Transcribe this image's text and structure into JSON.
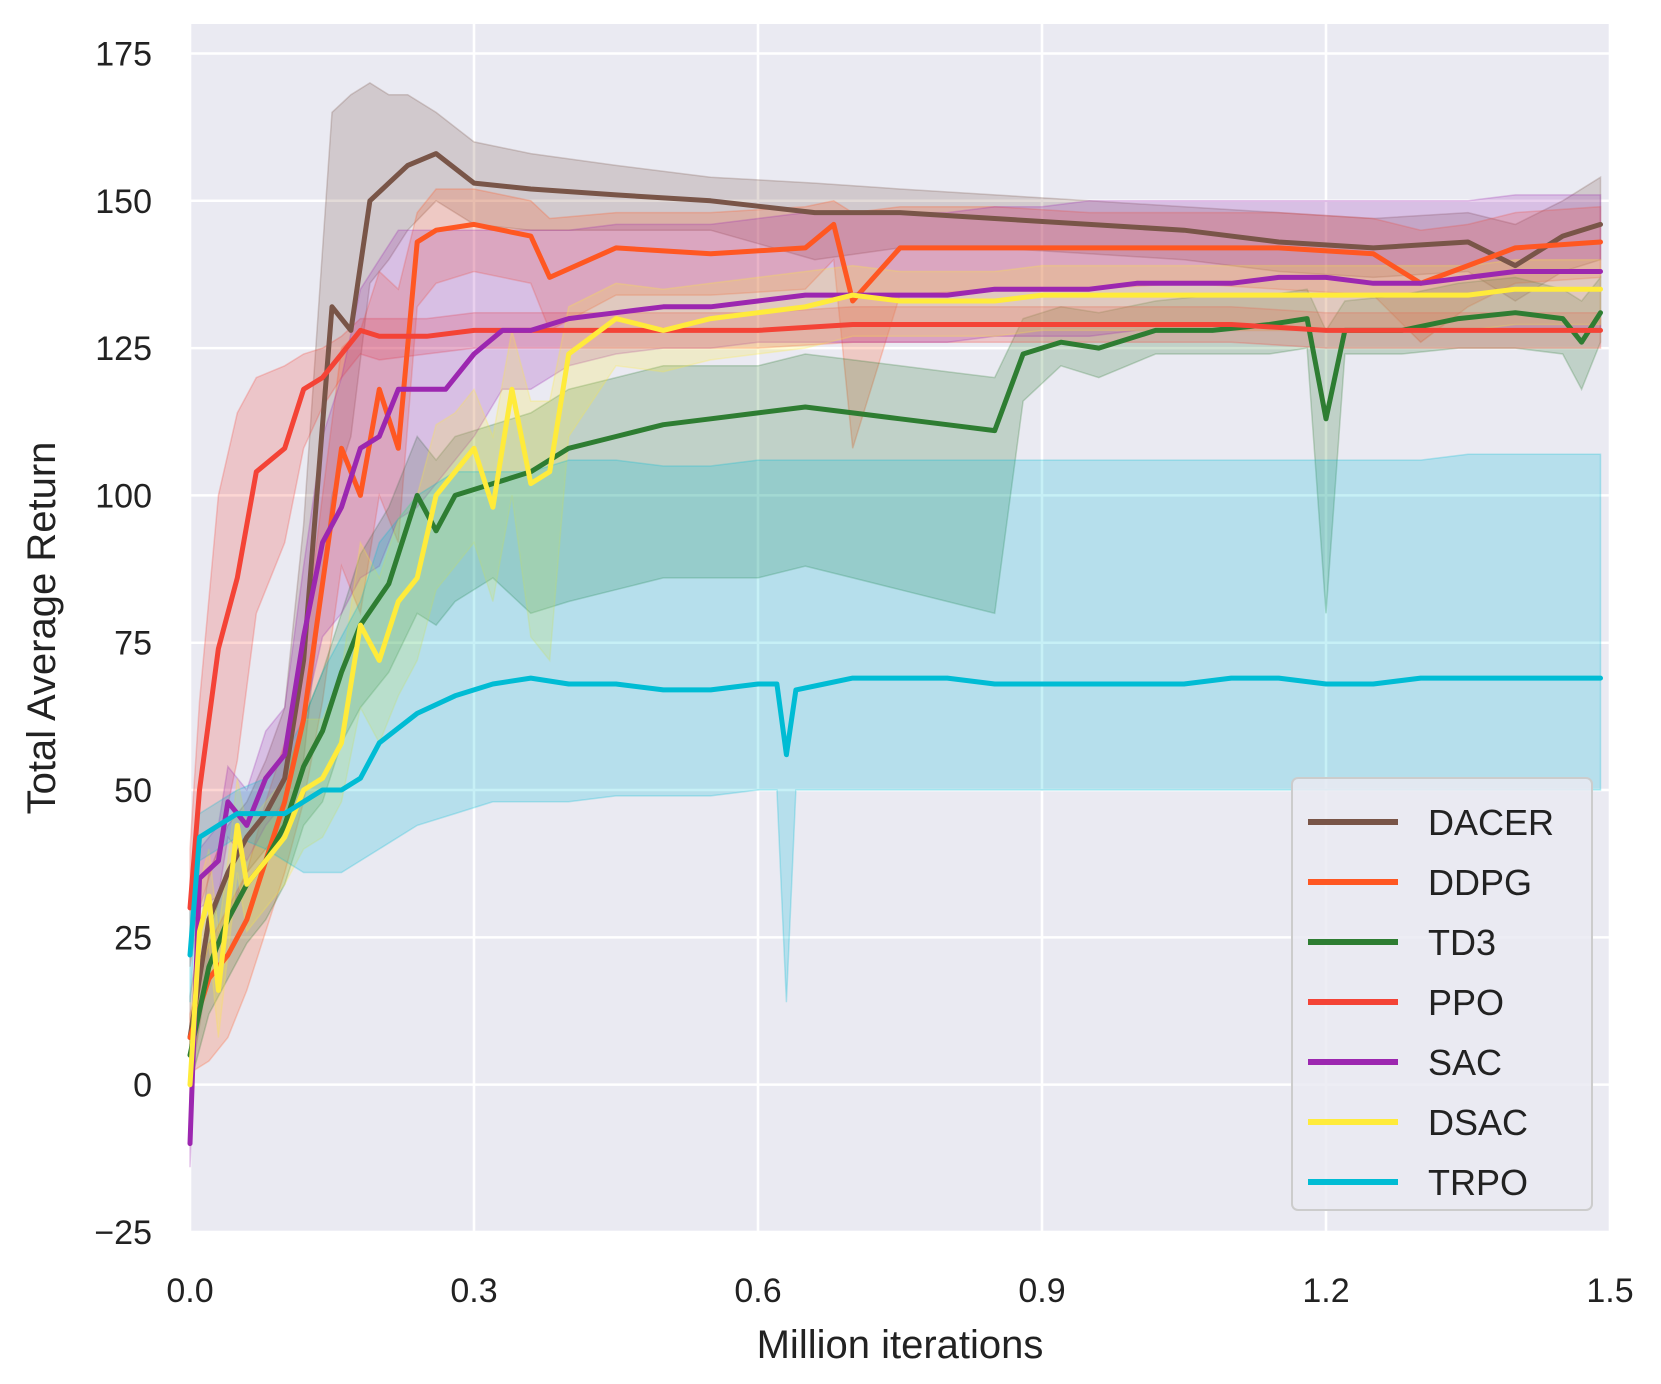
{
  "chart_data": {
    "type": "line",
    "title": "",
    "xlabel": "Million iterations",
    "ylabel": "Total Average Return",
    "xlim": [
      0.0,
      1.5
    ],
    "ylim": [
      -25,
      180
    ],
    "xticks": [
      0.0,
      0.3,
      0.6,
      0.9,
      1.2,
      1.5
    ],
    "xtick_labels": [
      "0.0",
      "0.3",
      "0.6",
      "0.9",
      "1.2",
      "1.5"
    ],
    "yticks": [
      -25,
      0,
      25,
      50,
      75,
      100,
      125,
      150,
      175
    ],
    "ytick_labels": [
      "−25",
      "0",
      "25",
      "50",
      "75",
      "100",
      "125",
      "150",
      "175"
    ],
    "grid": true,
    "background": "#eaeaf2",
    "legend_position": "bottom-right",
    "series": [
      {
        "name": "DACER",
        "color": "#795548",
        "x": [
          0,
          0.02,
          0.04,
          0.06,
          0.08,
          0.1,
          0.12,
          0.15,
          0.17,
          0.19,
          0.21,
          0.23,
          0.26,
          0.3,
          0.36,
          0.45,
          0.55,
          0.66,
          0.75,
          0.85,
          0.95,
          1.05,
          1.15,
          1.25,
          1.35,
          1.4,
          1.45,
          1.49
        ],
        "y": [
          8,
          28,
          36,
          42,
          46,
          52,
          72,
          132,
          128,
          150,
          153,
          156,
          158,
          153,
          152,
          151,
          150,
          148,
          148,
          147,
          146,
          145,
          143,
          142,
          143,
          139,
          144,
          146
        ],
        "upper": [
          15,
          36,
          44,
          48,
          55,
          64,
          95,
          165,
          168,
          170,
          168,
          168,
          165,
          160,
          158,
          156,
          154,
          153,
          152,
          151,
          150,
          149,
          148,
          147,
          148,
          146,
          150,
          154
        ],
        "lower": [
          0,
          20,
          28,
          36,
          40,
          44,
          55,
          100,
          110,
          136,
          140,
          145,
          150,
          146,
          145,
          145,
          145,
          140,
          142,
          142,
          141,
          140,
          138,
          137,
          138,
          133,
          138,
          140
        ]
      },
      {
        "name": "DDPG",
        "color": "#ff5722",
        "x": [
          0,
          0.02,
          0.04,
          0.06,
          0.08,
          0.1,
          0.12,
          0.14,
          0.16,
          0.18,
          0.2,
          0.22,
          0.24,
          0.26,
          0.3,
          0.36,
          0.38,
          0.45,
          0.55,
          0.65,
          0.68,
          0.7,
          0.75,
          0.85,
          0.95,
          1.05,
          1.15,
          1.25,
          1.3,
          1.35,
          1.4,
          1.49
        ],
        "y": [
          8,
          18,
          22,
          28,
          38,
          48,
          62,
          85,
          108,
          100,
          118,
          108,
          143,
          145,
          146,
          144,
          137,
          142,
          141,
          142,
          146,
          133,
          142,
          142,
          142,
          142,
          142,
          141,
          136,
          139,
          142,
          143
        ],
        "upper": [
          12,
          24,
          30,
          36,
          48,
          58,
          74,
          100,
          125,
          128,
          138,
          135,
          148,
          152,
          152,
          150,
          147,
          148,
          148,
          149,
          150,
          148,
          149,
          149,
          148,
          148,
          148,
          147,
          145,
          146,
          148,
          149
        ],
        "lower": [
          2,
          4,
          8,
          16,
          26,
          36,
          48,
          65,
          88,
          80,
          100,
          92,
          132,
          136,
          138,
          136,
          128,
          134,
          134,
          135,
          140,
          108,
          134,
          135,
          135,
          136,
          135,
          134,
          126,
          132,
          136,
          137
        ]
      },
      {
        "name": "TD3",
        "color": "#2e7d32",
        "x": [
          0,
          0.02,
          0.04,
          0.06,
          0.08,
          0.1,
          0.12,
          0.14,
          0.16,
          0.18,
          0.21,
          0.24,
          0.26,
          0.28,
          0.32,
          0.36,
          0.4,
          0.45,
          0.5,
          0.55,
          0.6,
          0.65,
          0.7,
          0.75,
          0.8,
          0.85,
          0.88,
          0.92,
          0.96,
          1.02,
          1.08,
          1.14,
          1.18,
          1.2,
          1.22,
          1.28,
          1.34,
          1.4,
          1.45,
          1.47,
          1.49
        ],
        "y": [
          5,
          20,
          28,
          34,
          38,
          44,
          54,
          60,
          70,
          78,
          85,
          100,
          94,
          100,
          102,
          104,
          108,
          110,
          112,
          113,
          114,
          115,
          114,
          113,
          112,
          111,
          124,
          126,
          125,
          128,
          128,
          129,
          130,
          113,
          128,
          128,
          130,
          131,
          130,
          126,
          131
        ],
        "upper": [
          10,
          26,
          36,
          42,
          46,
          52,
          62,
          70,
          80,
          90,
          98,
          110,
          106,
          110,
          112,
          114,
          118,
          120,
          122,
          122,
          122,
          124,
          123,
          122,
          121,
          120,
          130,
          132,
          131,
          133,
          134,
          134,
          135,
          128,
          133,
          134,
          136,
          137,
          135,
          133,
          137
        ],
        "lower": [
          0,
          12,
          18,
          24,
          28,
          34,
          44,
          48,
          58,
          64,
          70,
          80,
          78,
          82,
          86,
          80,
          82,
          84,
          86,
          86,
          86,
          88,
          86,
          84,
          82,
          80,
          116,
          122,
          120,
          124,
          124,
          124,
          125,
          80,
          124,
          124,
          125,
          125,
          124,
          118,
          126
        ]
      },
      {
        "name": "PPO",
        "color": "#f44336",
        "x": [
          0,
          0.01,
          0.03,
          0.05,
          0.07,
          0.1,
          0.12,
          0.14,
          0.16,
          0.18,
          0.2,
          0.25,
          0.3,
          0.4,
          0.5,
          0.6,
          0.7,
          0.8,
          0.9,
          1.0,
          1.1,
          1.2,
          1.3,
          1.4,
          1.49
        ],
        "y": [
          30,
          50,
          74,
          86,
          104,
          108,
          118,
          120,
          124,
          128,
          127,
          127,
          128,
          128,
          128,
          128,
          129,
          129,
          129,
          129,
          129,
          128,
          128,
          128,
          128
        ],
        "upper": [
          40,
          65,
          100,
          114,
          120,
          122,
          124,
          125,
          127,
          130,
          130,
          130,
          131,
          131,
          131,
          131,
          132,
          132,
          132,
          132,
          132,
          131,
          131,
          131,
          131
        ],
        "lower": [
          20,
          30,
          40,
          55,
          80,
          92,
          108,
          115,
          120,
          124,
          123,
          124,
          125,
          125,
          125,
          125,
          126,
          126,
          126,
          126,
          126,
          125,
          125,
          125,
          125
        ]
      },
      {
        "name": "SAC",
        "color": "#9c27b0",
        "x": [
          0,
          0.01,
          0.03,
          0.04,
          0.06,
          0.08,
          0.1,
          0.12,
          0.14,
          0.16,
          0.18,
          0.2,
          0.22,
          0.24,
          0.27,
          0.3,
          0.33,
          0.36,
          0.4,
          0.45,
          0.5,
          0.55,
          0.6,
          0.65,
          0.7,
          0.75,
          0.8,
          0.85,
          0.9,
          0.95,
          1.0,
          1.05,
          1.1,
          1.15,
          1.2,
          1.25,
          1.3,
          1.35,
          1.4,
          1.45,
          1.49
        ],
        "y": [
          -10,
          35,
          38,
          48,
          44,
          52,
          56,
          76,
          92,
          98,
          108,
          110,
          118,
          118,
          118,
          124,
          128,
          128,
          130,
          131,
          132,
          132,
          133,
          134,
          134,
          134,
          134,
          135,
          135,
          135,
          136,
          136,
          136,
          137,
          137,
          136,
          136,
          137,
          138,
          138,
          138
        ],
        "upper": [
          -2,
          40,
          44,
          54,
          50,
          60,
          64,
          88,
          110,
          120,
          135,
          140,
          145,
          145,
          145,
          145,
          145,
          145,
          145,
          146,
          146,
          146,
          147,
          148,
          148,
          148,
          148,
          149,
          149,
          150,
          150,
          150,
          150,
          150,
          150,
          150,
          150,
          150,
          151,
          151,
          151
        ],
        "lower": [
          -14,
          30,
          32,
          42,
          38,
          44,
          48,
          62,
          76,
          80,
          86,
          88,
          96,
          98,
          104,
          110,
          118,
          118,
          122,
          124,
          125,
          125,
          126,
          126,
          126,
          126,
          126,
          127,
          127,
          127,
          128,
          128,
          128,
          128,
          128,
          128,
          128,
          128,
          128,
          128,
          128
        ]
      },
      {
        "name": "DSAC",
        "color": "#ffeb3b",
        "x": [
          0,
          0.01,
          0.02,
          0.03,
          0.04,
          0.05,
          0.06,
          0.08,
          0.1,
          0.12,
          0.14,
          0.16,
          0.18,
          0.2,
          0.22,
          0.24,
          0.26,
          0.28,
          0.3,
          0.32,
          0.34,
          0.36,
          0.38,
          0.4,
          0.45,
          0.5,
          0.55,
          0.6,
          0.65,
          0.7,
          0.75,
          0.8,
          0.85,
          0.9,
          0.95,
          1.0,
          1.05,
          1.1,
          1.15,
          1.2,
          1.25,
          1.3,
          1.35,
          1.4,
          1.45,
          1.49
        ],
        "y": [
          0,
          26,
          32,
          16,
          30,
          44,
          34,
          38,
          42,
          50,
          52,
          58,
          78,
          72,
          82,
          86,
          100,
          104,
          108,
          98,
          118,
          102,
          104,
          124,
          130,
          128,
          130,
          131,
          132,
          134,
          133,
          133,
          133,
          134,
          134,
          134,
          134,
          134,
          134,
          134,
          134,
          134,
          134,
          135,
          135,
          135
        ],
        "upper": [
          8,
          34,
          40,
          26,
          38,
          52,
          44,
          48,
          52,
          62,
          62,
          70,
          92,
          86,
          96,
          100,
          112,
          114,
          118,
          110,
          128,
          116,
          116,
          132,
          136,
          135,
          136,
          137,
          138,
          139,
          138,
          138,
          138,
          139,
          139,
          139,
          139,
          139,
          139,
          139,
          139,
          139,
          139,
          140,
          140,
          140
        ],
        "lower": [
          -8,
          18,
          24,
          8,
          22,
          36,
          26,
          30,
          34,
          40,
          42,
          48,
          64,
          58,
          66,
          72,
          84,
          88,
          92,
          82,
          100,
          76,
          72,
          110,
          122,
          121,
          123,
          124,
          125,
          127,
          127,
          127,
          127,
          128,
          128,
          128,
          128,
          128,
          128,
          128,
          128,
          128,
          128,
          129,
          129,
          129
        ]
      },
      {
        "name": "TRPO",
        "color": "#00bcd4",
        "x": [
          0,
          0.01,
          0.03,
          0.05,
          0.08,
          0.1,
          0.12,
          0.14,
          0.16,
          0.18,
          0.2,
          0.24,
          0.28,
          0.32,
          0.36,
          0.4,
          0.45,
          0.5,
          0.55,
          0.6,
          0.62,
          0.63,
          0.64,
          0.67,
          0.7,
          0.75,
          0.8,
          0.85,
          0.9,
          0.95,
          1.0,
          1.05,
          1.1,
          1.15,
          1.2,
          1.25,
          1.3,
          1.35,
          1.4,
          1.45,
          1.49
        ],
        "y": [
          22,
          42,
          44,
          46,
          46,
          46,
          48,
          50,
          50,
          52,
          58,
          63,
          66,
          68,
          69,
          68,
          68,
          67,
          67,
          68,
          68,
          56,
          67,
          68,
          69,
          69,
          69,
          68,
          68,
          68,
          68,
          68,
          69,
          69,
          68,
          68,
          69,
          69,
          69,
          69,
          69
        ],
        "upper": [
          30,
          46,
          48,
          50,
          52,
          56,
          62,
          70,
          76,
          82,
          92,
          100,
          104,
          104,
          104,
          106,
          106,
          105,
          105,
          106,
          106,
          106,
          106,
          106,
          106,
          106,
          106,
          106,
          106,
          106,
          106,
          106,
          106,
          106,
          106,
          106,
          106,
          107,
          107,
          107,
          107
        ],
        "lower": [
          14,
          38,
          40,
          42,
          40,
          38,
          36,
          36,
          36,
          38,
          40,
          44,
          46,
          48,
          48,
          48,
          49,
          49,
          49,
          50,
          50,
          14,
          50,
          50,
          50,
          50,
          50,
          50,
          50,
          50,
          50,
          50,
          50,
          50,
          50,
          50,
          50,
          50,
          50,
          50,
          50
        ]
      }
    ]
  }
}
